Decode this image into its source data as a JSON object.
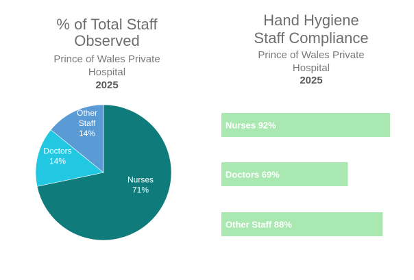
{
  "left": {
    "title_line1": "% of Total Staff",
    "title_line2": "Observed",
    "subtitle_line1": "Prince of Wales Private",
    "subtitle_line2": "Hospital",
    "year": "2025"
  },
  "right": {
    "title_line1": "Hand Hygiene",
    "title_line2": "Staff Compliance",
    "subtitle_line1": "Prince of Wales Private",
    "subtitle_line2": "Hospital",
    "year": "2025"
  },
  "colors": {
    "nurses": "#0f7b7b",
    "doctors": "#22c7e2",
    "other_staff": "#5b9bd5",
    "bar": "#a9e8b1",
    "label_text": "#ffffff"
  },
  "chart_data": [
    {
      "type": "pie",
      "title": "% of Total Staff Observed",
      "subtitle": "Prince of Wales Private Hospital 2025",
      "slices": [
        {
          "label": "Nurses",
          "value": 71,
          "value_label": "71%",
          "color": "#0f7b7b"
        },
        {
          "label": "Doctors",
          "value": 14,
          "value_label": "14%",
          "color": "#22c7e2"
        },
        {
          "label": "Other Staff",
          "value": 14,
          "value_label": "14%",
          "color": "#5b9bd5"
        }
      ]
    },
    {
      "type": "bar",
      "orientation": "horizontal",
      "title": "Hand Hygiene Staff Compliance",
      "subtitle": "Prince of Wales Private Hospital 2025",
      "categories": [
        "Nurses",
        "Doctors",
        "Other Staff"
      ],
      "values": [
        92,
        69,
        88
      ],
      "value_labels": [
        "Nurses 92%",
        "Doctors 69%",
        "Other Staff 88%"
      ],
      "xlim": [
        0,
        100
      ]
    }
  ]
}
